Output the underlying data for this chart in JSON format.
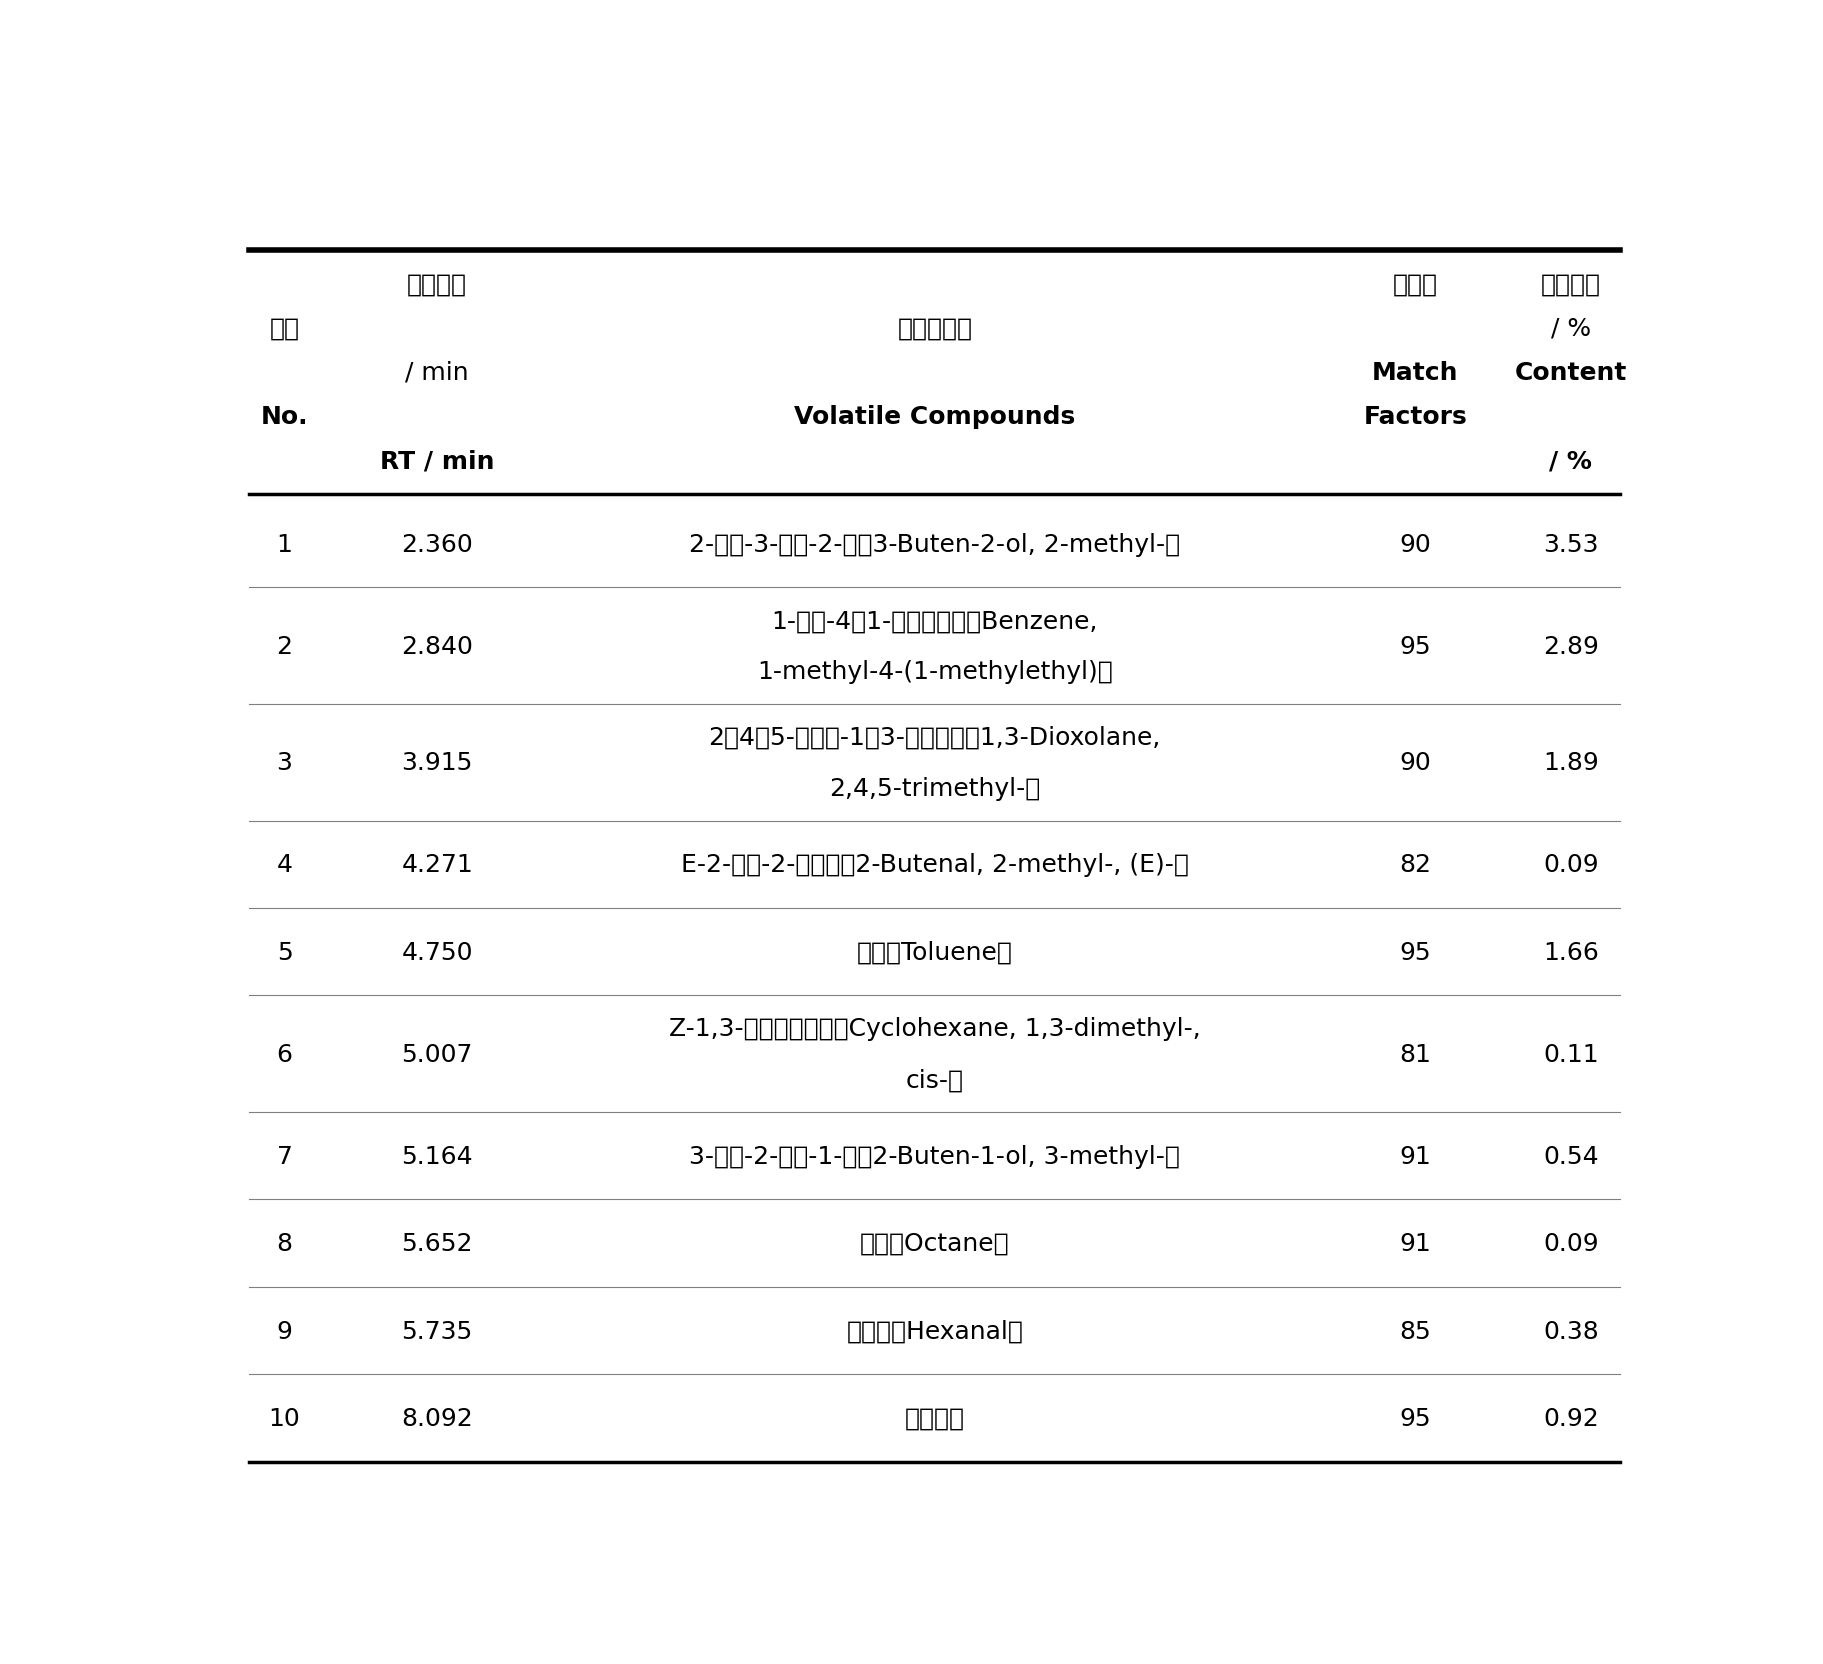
{
  "rows": [
    {
      "no": "1",
      "rt": "2.360",
      "compound_line1": "2-甲基-3-丁烯-2-醇（3-Buten-2-ol, 2-methyl-）",
      "compound_line2": "",
      "match": "90",
      "content": "3.53",
      "multiline": false
    },
    {
      "no": "2",
      "rt": "2.840",
      "compound_line1": "1-甲基-4（1-异丙基）苯（Benzene,",
      "compound_line2": "1-methyl-4-(1-methylethyl)）",
      "match": "95",
      "content": "2.89",
      "multiline": true
    },
    {
      "no": "3",
      "rt": "3.915",
      "compound_line1": "2，4，5-三甲基-1，3-二氧戊烷（1,3-Dioxolane,",
      "compound_line2": "2,4,5-trimethyl-）",
      "match": "90",
      "content": "1.89",
      "multiline": true
    },
    {
      "no": "4",
      "rt": "4.271",
      "compound_line1": "E-2-甲基-2-丁烯醇（2-Butenal, 2-methyl-, (E)-）",
      "compound_line2": "",
      "match": "82",
      "content": "0.09",
      "multiline": false
    },
    {
      "no": "5",
      "rt": "4.750",
      "compound_line1": "甲苯（Toluene）",
      "compound_line2": "",
      "match": "95",
      "content": "1.66",
      "multiline": false
    },
    {
      "no": "6",
      "rt": "5.007",
      "compound_line1": "Z-1,3-二甲基环己烷（Cyclohexane, 1,3-dimethyl-,",
      "compound_line2": "cis-）",
      "match": "81",
      "content": "0.11",
      "multiline": true
    },
    {
      "no": "7",
      "rt": "5.164",
      "compound_line1": "3-甲基-2-丁烯-1-醇（2-Buten-1-ol, 3-methyl-）",
      "compound_line2": "",
      "match": "91",
      "content": "0.54",
      "multiline": false
    },
    {
      "no": "8",
      "rt": "5.652",
      "compound_line1": "辛烷（Octane）",
      "compound_line2": "",
      "match": "91",
      "content": "0.09",
      "multiline": false
    },
    {
      "no": "9",
      "rt": "5.735",
      "compound_line1": "正己醇（Hexanal）",
      "compound_line2": "",
      "match": "85",
      "content": "0.38",
      "multiline": false
    },
    {
      "no": "10",
      "rt": "8.092",
      "compound_line1": "间二甲苯",
      "compound_line2": "",
      "match": "95",
      "content": "0.92",
      "multiline": false
    }
  ],
  "bg_color": "#ffffff",
  "text_color": "#000000",
  "figsize": [
    18.24,
    16.65
  ],
  "dpi": 100,
  "header_cn": {
    "biaohao": "编号",
    "baoliu": "保留时间",
    "huifa": "挥发性成分",
    "pipei": "匹配度",
    "xiangdui": "相对含量"
  }
}
